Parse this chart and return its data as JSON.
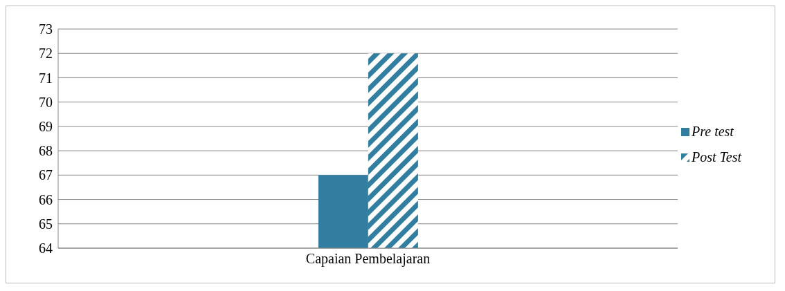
{
  "chart_data": {
    "type": "bar",
    "categories": [
      "Capaian Pembelajaran"
    ],
    "series": [
      {
        "name": "Pre test",
        "color": "#327ea0",
        "values": [
          67
        ]
      },
      {
        "name": "Post Test",
        "color": "#327ea0",
        "values": [
          72
        ]
      }
    ],
    "ylim": [
      64,
      73
    ],
    "yticks": [
      64,
      65,
      66,
      67,
      68,
      69,
      70,
      71,
      72,
      73
    ],
    "grid": "y",
    "legend": "right"
  }
}
